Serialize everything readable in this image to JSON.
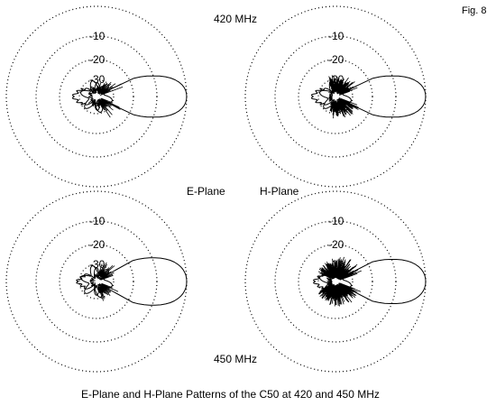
{
  "figure": {
    "fig_label": "Fig. 8",
    "freq_top": "420 MHz",
    "freq_bottom": "450 MHz",
    "plane_e": "E-Plane",
    "plane_h": "H-Plane",
    "caption": "E-Plane and H-Plane Patterns of the C50 at 420 and 450 MHz"
  },
  "chart_data": [
    {
      "type": "polar",
      "panel": "420 MHz E-Plane",
      "ring_labels": [
        "-10",
        "-20",
        "-30"
      ],
      "ring_levels_db": [
        0,
        -10,
        -20,
        -30
      ],
      "main_lobe": {
        "direction_deg": 0,
        "peak_db": 0,
        "half_width_deg": 13
      },
      "back_lobe_db": -27,
      "side_spike_level_db": -23,
      "side_spike_extent_deg": 60,
      "spike_density": "low"
    },
    {
      "type": "polar",
      "panel": "420 MHz H-Plane",
      "ring_labels": [
        "-10",
        "-20",
        "-30"
      ],
      "ring_levels_db": [
        0,
        -10,
        -20,
        -30
      ],
      "main_lobe": {
        "direction_deg": 0,
        "peak_db": 0,
        "half_width_deg": 13
      },
      "back_lobe_db": -27,
      "side_spike_level_db": -24,
      "side_spike_extent_deg": 115,
      "spike_density": "medium"
    },
    {
      "type": "polar",
      "panel": "450 MHz E-Plane",
      "ring_labels": [
        "-10",
        "-20",
        "-30"
      ],
      "ring_levels_db": [
        0,
        -10,
        -20,
        -30
      ],
      "main_lobe": {
        "direction_deg": 0,
        "peak_db": 0,
        "half_width_deg": 15
      },
      "back_lobe_db": -29,
      "side_spike_level_db": -25,
      "side_spike_extent_deg": 75,
      "spike_density": "low"
    },
    {
      "type": "polar",
      "panel": "450 MHz H-Plane",
      "ring_labels": [
        "-10",
        "-20",
        "-30"
      ],
      "ring_levels_db": [
        0,
        -10,
        -20,
        -30
      ],
      "main_lobe": {
        "direction_deg": 0,
        "peak_db": 0,
        "half_width_deg": 14
      },
      "back_lobe_db": -28,
      "side_spike_level_db": -23,
      "side_spike_extent_deg": 150,
      "spike_density": "high"
    }
  ]
}
